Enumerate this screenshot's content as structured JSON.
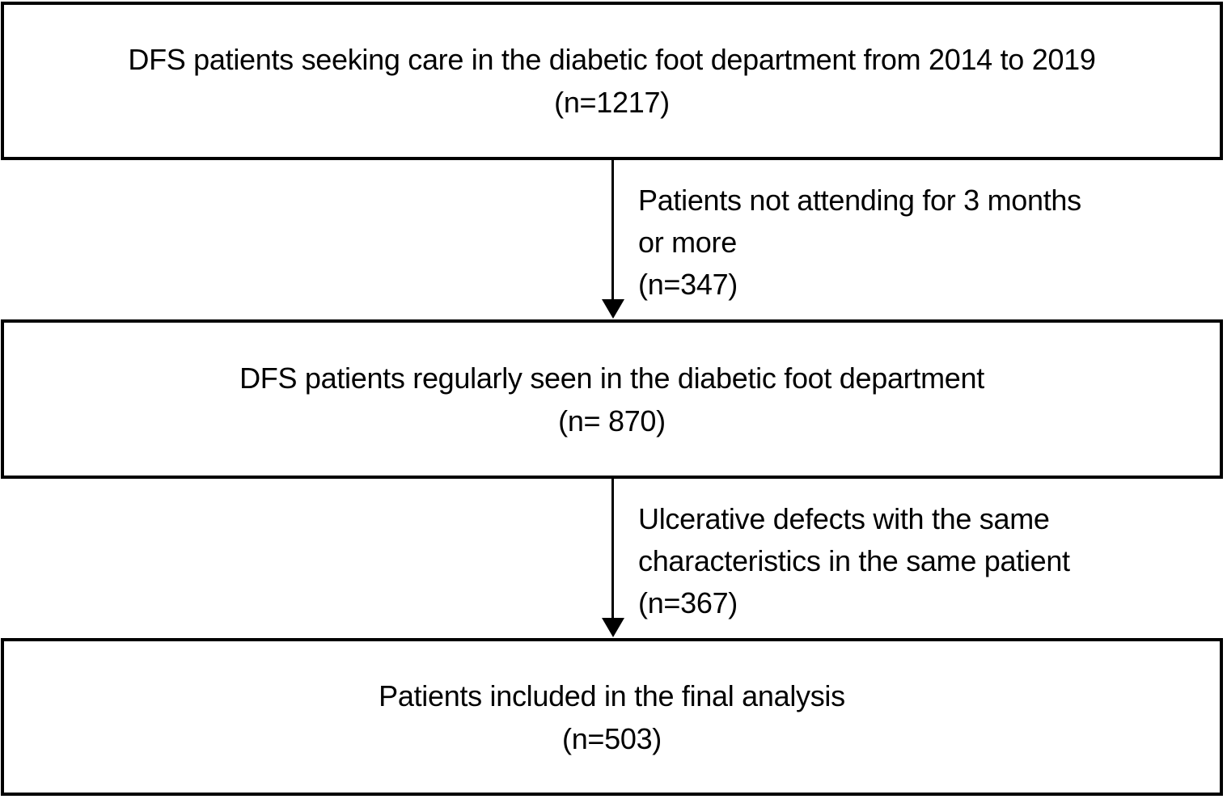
{
  "figure": {
    "type": "flowchart",
    "colors": {
      "border": "#000000",
      "text": "#000000",
      "background": "#ffffff"
    },
    "boxes": [
      {
        "id": "enrolled",
        "line1": "DFS patients seeking care in the diabetic foot department from 2014 to 2019",
        "line2": "(n=1217)"
      },
      {
        "id": "regularly-seen",
        "line1": "DFS patients regularly seen in the diabetic foot department",
        "line2": "(n= 870)"
      },
      {
        "id": "final-analysis",
        "line1": "Patients included in the final analysis",
        "line2": "(n=503)"
      }
    ],
    "exclusions": [
      {
        "id": "not-attending",
        "line1": "Patients not attending for 3 months",
        "line2": "or more",
        "line3": "(n=347)"
      },
      {
        "id": "duplicate-ulcers",
        "line1": "Ulcerative defects with the same",
        "line2": "characteristics in the same patient",
        "line3": "(n=367)"
      }
    ]
  }
}
